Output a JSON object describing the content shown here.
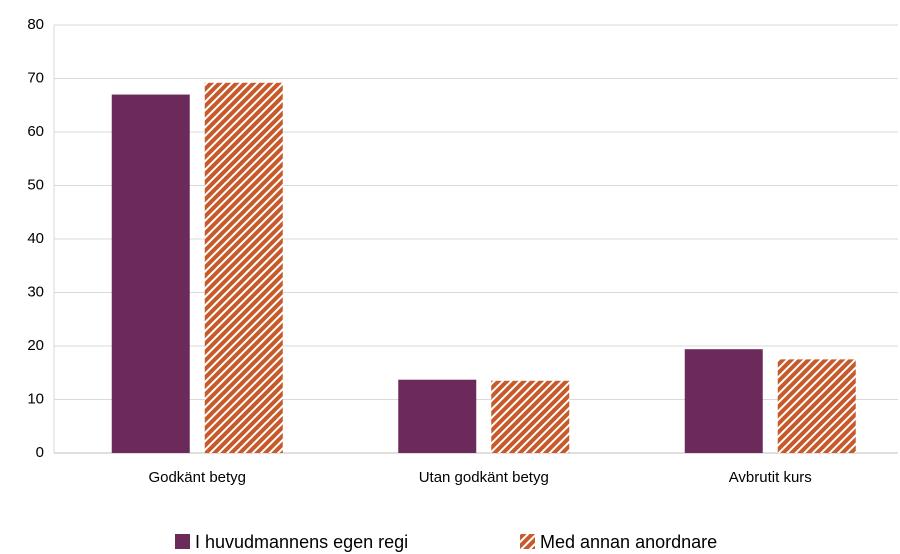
{
  "chart_data": {
    "type": "bar",
    "categories": [
      "Godkänt betyg",
      "Utan godkänt betyg",
      "Avbrutit kurs"
    ],
    "series": [
      {
        "name": "I huvudmannens egen regi",
        "color": "#6B2A5A",
        "values": [
          67,
          13.7,
          19.4
        ]
      },
      {
        "name": "Med annan anordnare",
        "color": "#C65A2B",
        "pattern": "diagonal-hatch",
        "values": [
          69.2,
          13.5,
          17.5
        ]
      }
    ],
    "ylim": [
      0,
      80
    ],
    "yticks": [
      0,
      10,
      20,
      30,
      40,
      50,
      60,
      70,
      80
    ],
    "grid": true,
    "legend": "bottom"
  }
}
